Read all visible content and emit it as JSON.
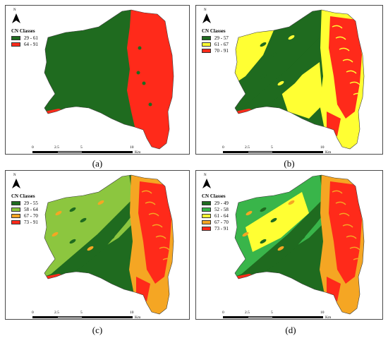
{
  "north_label": "N",
  "legend_title": "CN Classes",
  "scale": {
    "ticks": [
      "0",
      "2.5",
      "5",
      "10"
    ],
    "unit": "Km"
  },
  "panels": [
    {
      "caption": "(a)",
      "classes": [
        {
          "label": "29 - 61",
          "color": "#1f6b1f"
        },
        {
          "label": "64 - 91",
          "color": "#ff2a1a"
        }
      ]
    },
    {
      "caption": "(b)",
      "classes": [
        {
          "label": "29 - 57",
          "color": "#1f6b1f"
        },
        {
          "label": "61 - 67",
          "color": "#ffff33"
        },
        {
          "label": "70 - 91",
          "color": "#ff2a1a"
        }
      ]
    },
    {
      "caption": "(c)",
      "classes": [
        {
          "label": "29 - 55",
          "color": "#1f6b1f"
        },
        {
          "label": "58 - 64",
          "color": "#8cc63f"
        },
        {
          "label": "67 - 70",
          "color": "#f5a623"
        },
        {
          "label": "73 - 91",
          "color": "#ff2a1a"
        }
      ]
    },
    {
      "caption": "(d)",
      "classes": [
        {
          "label": "29 - 49",
          "color": "#1f6b1f"
        },
        {
          "label": "52 - 58",
          "color": "#39b54a"
        },
        {
          "label": "61 - 64",
          "color": "#ffff33"
        },
        {
          "label": "67 - 70",
          "color": "#f5a623"
        },
        {
          "label": "73 - 91",
          "color": "#ff2a1a"
        }
      ]
    }
  ]
}
